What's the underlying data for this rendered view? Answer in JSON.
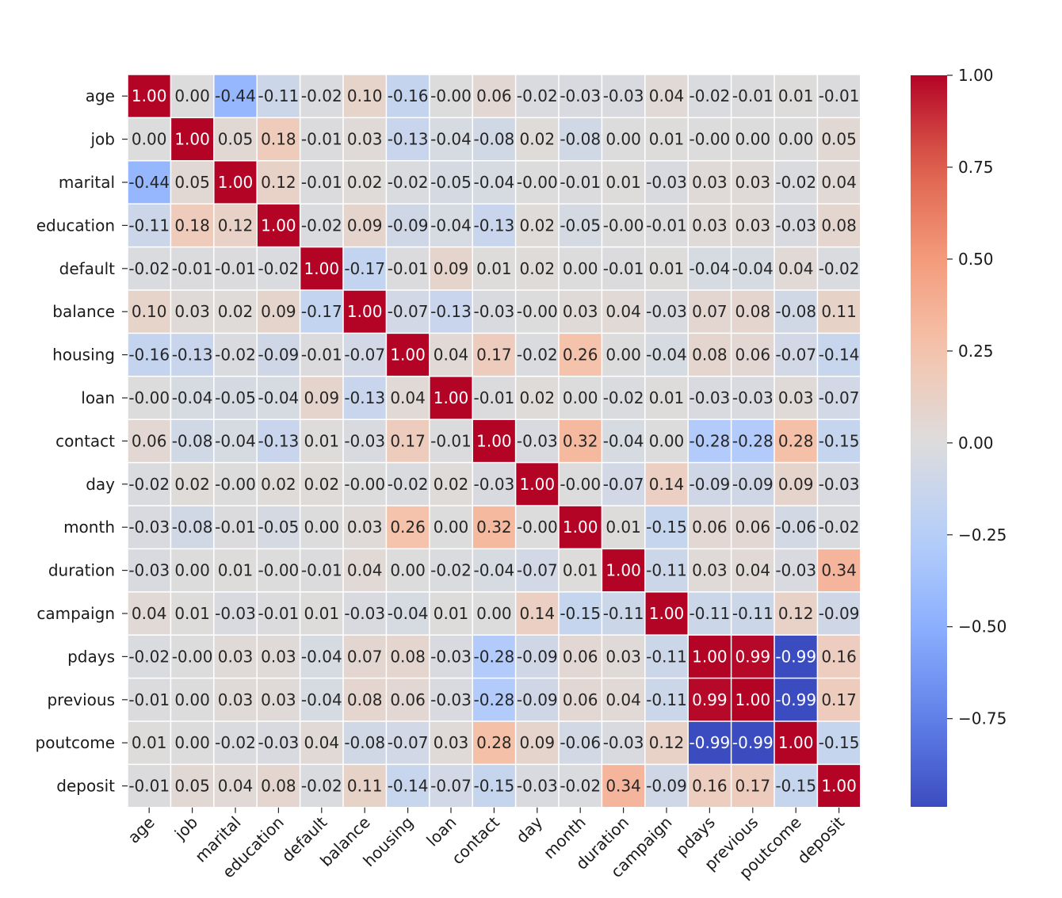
{
  "chart_data": {
    "type": "heatmap",
    "title": "",
    "xlabel": "",
    "ylabel": "",
    "variables": [
      "age",
      "job",
      "marital",
      "education",
      "default",
      "balance",
      "housing",
      "loan",
      "contact",
      "day",
      "month",
      "duration",
      "campaign",
      "pdays",
      "previous",
      "poutcome",
      "deposit"
    ],
    "matrix": [
      [
        1.0,
        0.0,
        -0.44,
        -0.11,
        -0.02,
        0.1,
        -0.16,
        -0.0,
        0.06,
        -0.02,
        -0.03,
        -0.03,
        0.04,
        -0.02,
        -0.01,
        0.01,
        -0.01
      ],
      [
        0.0,
        1.0,
        0.05,
        0.18,
        -0.01,
        0.03,
        -0.13,
        -0.04,
        -0.08,
        0.02,
        -0.08,
        0.0,
        0.01,
        -0.0,
        0.0,
        0.0,
        0.05
      ],
      [
        -0.44,
        0.05,
        1.0,
        0.12,
        -0.01,
        0.02,
        -0.02,
        -0.05,
        -0.04,
        -0.0,
        -0.01,
        0.01,
        -0.03,
        0.03,
        0.03,
        -0.02,
        0.04
      ],
      [
        -0.11,
        0.18,
        0.12,
        1.0,
        -0.02,
        0.09,
        -0.09,
        -0.04,
        -0.13,
        0.02,
        -0.05,
        -0.0,
        -0.01,
        0.03,
        0.03,
        -0.03,
        0.08
      ],
      [
        -0.02,
        -0.01,
        -0.01,
        -0.02,
        1.0,
        -0.17,
        -0.01,
        0.09,
        0.01,
        0.02,
        0.0,
        -0.01,
        0.01,
        -0.04,
        -0.04,
        0.04,
        -0.02
      ],
      [
        0.1,
        0.03,
        0.02,
        0.09,
        -0.17,
        1.0,
        -0.07,
        -0.13,
        -0.03,
        -0.0,
        0.03,
        0.04,
        -0.03,
        0.07,
        0.08,
        -0.08,
        0.11
      ],
      [
        -0.16,
        -0.13,
        -0.02,
        -0.09,
        -0.01,
        -0.07,
        1.0,
        0.04,
        0.17,
        -0.02,
        0.26,
        0.0,
        -0.04,
        0.08,
        0.06,
        -0.07,
        -0.14
      ],
      [
        -0.0,
        -0.04,
        -0.05,
        -0.04,
        0.09,
        -0.13,
        0.04,
        1.0,
        -0.01,
        0.02,
        0.0,
        -0.02,
        0.01,
        -0.03,
        -0.03,
        0.03,
        -0.07
      ],
      [
        0.06,
        -0.08,
        -0.04,
        -0.13,
        0.01,
        -0.03,
        0.17,
        -0.01,
        1.0,
        -0.03,
        0.32,
        -0.04,
        0.0,
        -0.28,
        -0.28,
        0.28,
        -0.15
      ],
      [
        -0.02,
        0.02,
        -0.0,
        0.02,
        0.02,
        -0.0,
        -0.02,
        0.02,
        -0.03,
        1.0,
        -0.0,
        -0.07,
        0.14,
        -0.09,
        -0.09,
        0.09,
        -0.03
      ],
      [
        -0.03,
        -0.08,
        -0.01,
        -0.05,
        0.0,
        0.03,
        0.26,
        0.0,
        0.32,
        -0.0,
        1.0,
        0.01,
        -0.15,
        0.06,
        0.06,
        -0.06,
        -0.02
      ],
      [
        -0.03,
        0.0,
        0.01,
        -0.0,
        -0.01,
        0.04,
        0.0,
        -0.02,
        -0.04,
        -0.07,
        0.01,
        1.0,
        -0.11,
        0.03,
        0.04,
        -0.03,
        0.34
      ],
      [
        0.04,
        0.01,
        -0.03,
        -0.01,
        0.01,
        -0.03,
        -0.04,
        0.01,
        0.0,
        0.14,
        -0.15,
        -0.11,
        1.0,
        -0.11,
        -0.11,
        0.12,
        -0.09
      ],
      [
        -0.02,
        -0.0,
        0.03,
        0.03,
        -0.04,
        0.07,
        0.08,
        -0.03,
        -0.28,
        -0.09,
        0.06,
        0.03,
        -0.11,
        1.0,
        0.99,
        -0.99,
        0.16
      ],
      [
        -0.01,
        0.0,
        0.03,
        0.03,
        -0.04,
        0.08,
        0.06,
        -0.03,
        -0.28,
        -0.09,
        0.06,
        0.04,
        -0.11,
        0.99,
        1.0,
        -0.99,
        0.17
      ],
      [
        0.01,
        0.0,
        -0.02,
        -0.03,
        0.04,
        -0.08,
        -0.07,
        0.03,
        0.28,
        0.09,
        -0.06,
        -0.03,
        0.12,
        -0.99,
        -0.99,
        1.0,
        -0.15
      ],
      [
        -0.01,
        0.05,
        0.04,
        0.08,
        -0.02,
        0.11,
        -0.14,
        -0.07,
        -0.15,
        -0.03,
        -0.02,
        0.34,
        -0.09,
        0.16,
        0.17,
        -0.15,
        1.0
      ]
    ],
    "value_format": "2 decimals",
    "colormap": "coolwarm",
    "colorbar": {
      "vmin": -0.99,
      "vmax": 1.0,
      "ticks": [
        1.0,
        0.75,
        0.5,
        0.25,
        0.0,
        -0.25,
        -0.5,
        -0.75
      ],
      "tick_labels": [
        "1.00",
        "0.75",
        "0.50",
        "0.25",
        "0.00",
        "−0.25",
        "−0.50",
        "−0.75"
      ]
    },
    "colors": {
      "low": "#3b4cc0",
      "mid": "#dddcdc",
      "high": "#b40426",
      "gridline": "#ffffff"
    }
  }
}
